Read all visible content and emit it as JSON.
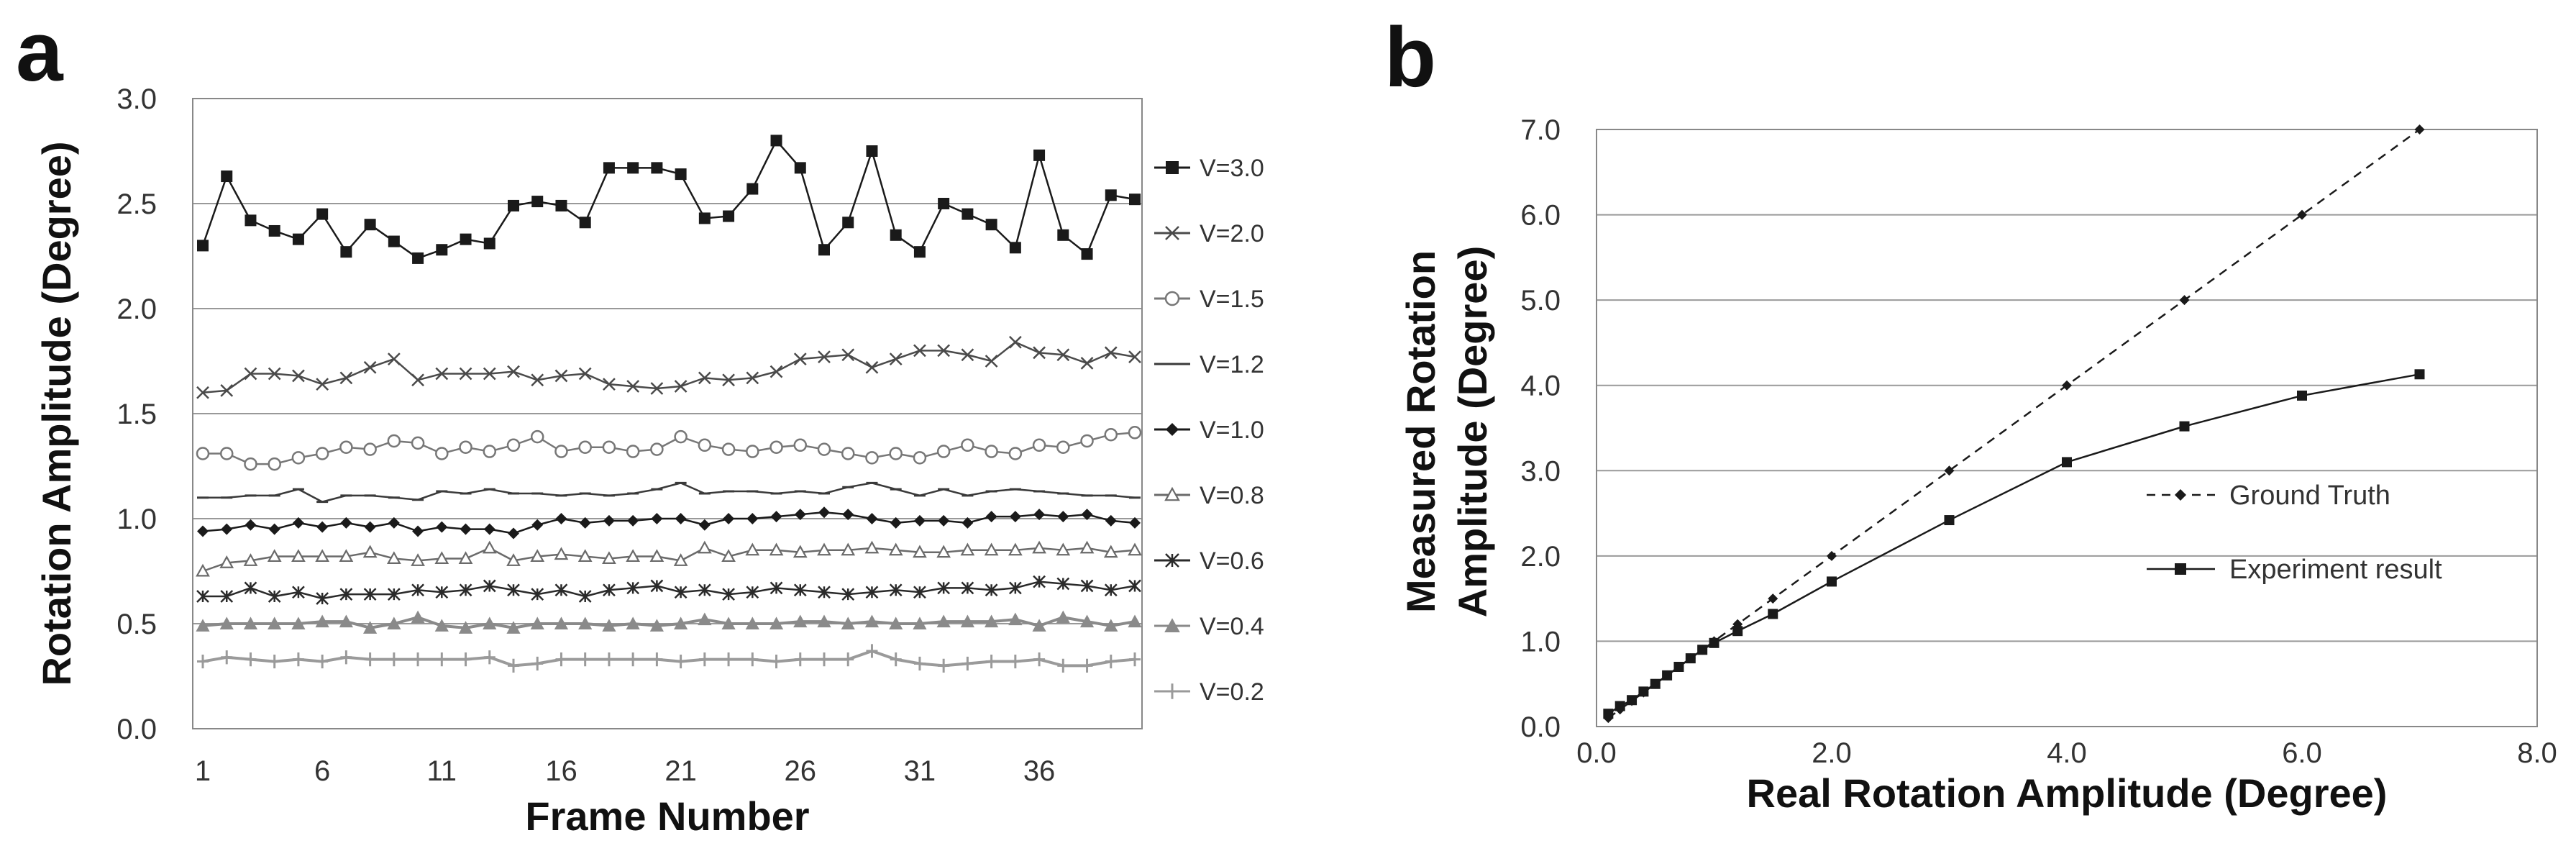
{
  "chart_data": [
    {
      "panel": "a",
      "type": "line",
      "xlabel": "Frame Number",
      "ylabel": "Rotation Amplitude (Degree)",
      "ylim": [
        0,
        3.0
      ],
      "y_ticks": [
        "0.0",
        "0.5",
        "1.0",
        "1.5",
        "2.0",
        "2.5",
        "3.0"
      ],
      "x_ticks": [
        "1",
        "6",
        "11",
        "16",
        "21",
        "26",
        "31",
        "36"
      ],
      "grid": "horizontal",
      "legend_position": "right",
      "series": [
        {
          "name": "V=3.0",
          "marker": "square",
          "color": "#1a1a1a",
          "values": [
            2.3,
            2.63,
            2.42,
            2.37,
            2.33,
            2.45,
            2.27,
            2.4,
            2.32,
            2.24,
            2.28,
            2.33,
            2.31,
            2.49,
            2.51,
            2.49,
            2.41,
            2.67,
            2.67,
            2.67,
            2.64,
            2.43,
            2.44,
            2.57,
            2.8,
            2.67,
            2.28,
            2.41,
            2.75,
            2.35,
            2.27,
            2.5,
            2.45,
            2.4,
            2.29,
            2.73,
            2.35,
            2.26,
            2.54,
            2.52
          ]
        },
        {
          "name": "V=2.0",
          "marker": "x",
          "color": "#4a4a4a",
          "values": [
            1.6,
            1.61,
            1.69,
            1.69,
            1.68,
            1.64,
            1.67,
            1.72,
            1.76,
            1.66,
            1.69,
            1.69,
            1.69,
            1.7,
            1.66,
            1.68,
            1.69,
            1.64,
            1.63,
            1.62,
            1.63,
            1.67,
            1.66,
            1.67,
            1.7,
            1.76,
            1.77,
            1.78,
            1.72,
            1.76,
            1.8,
            1.8,
            1.78,
            1.75,
            1.84,
            1.79,
            1.78,
            1.74,
            1.79,
            1.77
          ]
        },
        {
          "name": "V=1.5",
          "marker": "circle",
          "color": "#777777",
          "values": [
            1.31,
            1.31,
            1.26,
            1.26,
            1.29,
            1.31,
            1.34,
            1.33,
            1.37,
            1.36,
            1.31,
            1.34,
            1.32,
            1.35,
            1.39,
            1.32,
            1.34,
            1.34,
            1.32,
            1.33,
            1.39,
            1.35,
            1.33,
            1.32,
            1.34,
            1.35,
            1.33,
            1.31,
            1.29,
            1.31,
            1.29,
            1.32,
            1.35,
            1.32,
            1.31,
            1.35,
            1.34,
            1.37,
            1.4,
            1.41
          ]
        },
        {
          "name": "V=1.2",
          "marker": "dash",
          "color": "#3a3a3a",
          "values": [
            1.1,
            1.1,
            1.11,
            1.11,
            1.14,
            1.08,
            1.11,
            1.11,
            1.1,
            1.09,
            1.13,
            1.12,
            1.14,
            1.12,
            1.12,
            1.11,
            1.12,
            1.11,
            1.12,
            1.14,
            1.17,
            1.12,
            1.13,
            1.13,
            1.12,
            1.13,
            1.12,
            1.15,
            1.17,
            1.14,
            1.11,
            1.14,
            1.11,
            1.13,
            1.14,
            1.13,
            1.12,
            1.11,
            1.11,
            1.1
          ]
        },
        {
          "name": "V=1.0",
          "marker": "diamond",
          "color": "#1a1a1a",
          "values": [
            0.94,
            0.95,
            0.97,
            0.95,
            0.98,
            0.96,
            0.98,
            0.96,
            0.98,
            0.94,
            0.96,
            0.95,
            0.95,
            0.93,
            0.97,
            1.0,
            0.98,
            0.99,
            0.99,
            1.0,
            1.0,
            0.97,
            1.0,
            1.0,
            1.01,
            1.02,
            1.03,
            1.02,
            1.0,
            0.98,
            0.99,
            0.99,
            0.98,
            1.01,
            1.01,
            1.02,
            1.01,
            1.02,
            0.99,
            0.98
          ]
        },
        {
          "name": "V=0.8",
          "marker": "triangle-open",
          "color": "#6a6a6a",
          "values": [
            0.75,
            0.79,
            0.8,
            0.82,
            0.82,
            0.82,
            0.82,
            0.84,
            0.81,
            0.8,
            0.81,
            0.81,
            0.86,
            0.8,
            0.82,
            0.83,
            0.82,
            0.81,
            0.82,
            0.82,
            0.8,
            0.86,
            0.82,
            0.85,
            0.85,
            0.84,
            0.85,
            0.85,
            0.86,
            0.85,
            0.84,
            0.84,
            0.85,
            0.85,
            0.85,
            0.86,
            0.85,
            0.86,
            0.84,
            0.85
          ]
        },
        {
          "name": "V=0.6",
          "marker": "star",
          "color": "#2a2a2a",
          "values": [
            0.63,
            0.63,
            0.67,
            0.63,
            0.65,
            0.62,
            0.64,
            0.64,
            0.64,
            0.66,
            0.65,
            0.66,
            0.68,
            0.66,
            0.64,
            0.66,
            0.63,
            0.66,
            0.67,
            0.68,
            0.65,
            0.66,
            0.64,
            0.65,
            0.67,
            0.66,
            0.65,
            0.64,
            0.65,
            0.66,
            0.65,
            0.67,
            0.67,
            0.66,
            0.67,
            0.7,
            0.69,
            0.68,
            0.66,
            0.68
          ]
        },
        {
          "name": "V=0.4",
          "marker": "triangle-filled",
          "color": "#8a8a8a",
          "values": [
            0.49,
            0.5,
            0.5,
            0.5,
            0.5,
            0.51,
            0.51,
            0.48,
            0.5,
            0.53,
            0.49,
            0.48,
            0.5,
            0.48,
            0.5,
            0.5,
            0.5,
            0.49,
            0.5,
            0.49,
            0.5,
            0.52,
            0.5,
            0.5,
            0.5,
            0.51,
            0.51,
            0.5,
            0.51,
            0.5,
            0.5,
            0.51,
            0.51,
            0.51,
            0.52,
            0.49,
            0.53,
            0.51,
            0.49,
            0.51
          ]
        },
        {
          "name": "V=0.2",
          "marker": "plus",
          "color": "#9a9a9a",
          "values": [
            0.32,
            0.34,
            0.33,
            0.32,
            0.33,
            0.32,
            0.34,
            0.33,
            0.33,
            0.33,
            0.33,
            0.33,
            0.34,
            0.3,
            0.31,
            0.33,
            0.33,
            0.33,
            0.33,
            0.33,
            0.32,
            0.33,
            0.33,
            0.33,
            0.32,
            0.33,
            0.33,
            0.33,
            0.37,
            0.33,
            0.31,
            0.3,
            0.31,
            0.32,
            0.32,
            0.33,
            0.3,
            0.3,
            0.32,
            0.33
          ]
        }
      ]
    },
    {
      "panel": "b",
      "type": "line",
      "xlabel": "Real Rotation Amplitude (Degree)",
      "ylabel_lines": [
        "Measured Rotation",
        "Amplitude (Degree)"
      ],
      "xlim": [
        0,
        8.0
      ],
      "ylim": [
        0,
        7.0
      ],
      "x_ticks": [
        "0.0",
        "2.0",
        "4.0",
        "6.0",
        "8.0"
      ],
      "y_ticks": [
        "0.0",
        "1.0",
        "2.0",
        "3.0",
        "4.0",
        "5.0",
        "6.0",
        "7.0"
      ],
      "grid": "horizontal",
      "legend_position": "bottom-right",
      "series": [
        {
          "name": "Ground Truth",
          "style": "dashed",
          "marker": "diamond",
          "color": "#1a1a1a",
          "x": [
            0.1,
            0.2,
            0.3,
            0.4,
            0.5,
            0.6,
            0.7,
            0.8,
            0.9,
            1.0,
            1.2,
            1.5,
            2.0,
            3.0,
            4.0,
            5.0,
            6.0,
            7.0
          ],
          "y": [
            0.1,
            0.2,
            0.3,
            0.4,
            0.5,
            0.6,
            0.7,
            0.8,
            0.9,
            1.0,
            1.2,
            1.5,
            2.0,
            3.0,
            4.0,
            5.0,
            6.0,
            7.0
          ]
        },
        {
          "name": "Experiment result",
          "style": "solid",
          "marker": "square",
          "color": "#1a1a1a",
          "x": [
            0.1,
            0.2,
            0.3,
            0.4,
            0.5,
            0.6,
            0.7,
            0.8,
            0.9,
            1.0,
            1.2,
            1.5,
            2.0,
            3.0,
            4.0,
            5.0,
            6.0,
            7.0
          ],
          "y": [
            0.15,
            0.24,
            0.31,
            0.41,
            0.5,
            0.6,
            0.7,
            0.8,
            0.9,
            0.98,
            1.12,
            1.32,
            1.7,
            2.42,
            3.1,
            3.52,
            3.88,
            4.13
          ]
        }
      ]
    }
  ],
  "labels": {
    "panel_a": "a",
    "panel_b": "b"
  }
}
